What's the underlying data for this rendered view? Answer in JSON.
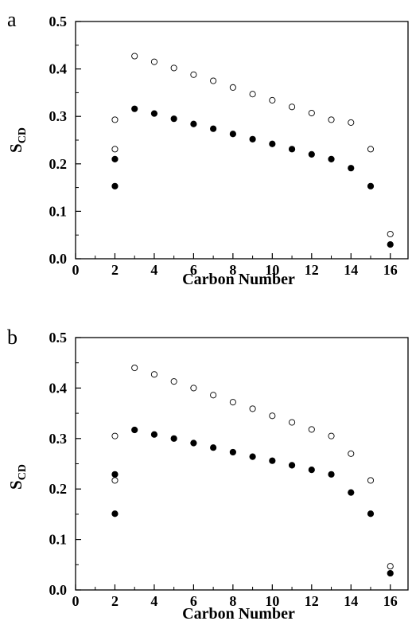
{
  "chart_data": [
    {
      "type": "scatter",
      "panel_label": "a",
      "xlabel": "Carbon Number",
      "ylabel": "S",
      "ylabel_subscript": "CD",
      "xlim": [
        0,
        16.9
      ],
      "ylim": [
        0,
        0.5
      ],
      "xticks": [
        "0",
        "2",
        "4",
        "6",
        "8",
        "10",
        "12",
        "14",
        "16"
      ],
      "yticks": [
        "0.0",
        "0.1",
        "0.2",
        "0.3",
        "0.4",
        "0.5"
      ],
      "grid": false,
      "series": [
        {
          "marker": "open-circle",
          "points": [
            {
              "x": 2,
              "y": 0.293
            },
            {
              "x": 2,
              "y": 0.231
            },
            {
              "x": 3,
              "y": 0.427
            },
            {
              "x": 4,
              "y": 0.415
            },
            {
              "x": 5,
              "y": 0.402
            },
            {
              "x": 6,
              "y": 0.388
            },
            {
              "x": 7,
              "y": 0.375
            },
            {
              "x": 8,
              "y": 0.361
            },
            {
              "x": 9,
              "y": 0.347
            },
            {
              "x": 10,
              "y": 0.334
            },
            {
              "x": 11,
              "y": 0.32
            },
            {
              "x": 12,
              "y": 0.307
            },
            {
              "x": 13,
              "y": 0.293
            },
            {
              "x": 14,
              "y": 0.287
            },
            {
              "x": 15,
              "y": 0.231
            },
            {
              "x": 16,
              "y": 0.052
            }
          ]
        },
        {
          "marker": "filled-circle",
          "points": [
            {
              "x": 2,
              "y": 0.21
            },
            {
              "x": 2,
              "y": 0.153
            },
            {
              "x": 3,
              "y": 0.316
            },
            {
              "x": 4,
              "y": 0.306
            },
            {
              "x": 5,
              "y": 0.295
            },
            {
              "x": 6,
              "y": 0.284
            },
            {
              "x": 7,
              "y": 0.274
            },
            {
              "x": 8,
              "y": 0.263
            },
            {
              "x": 9,
              "y": 0.252
            },
            {
              "x": 10,
              "y": 0.242
            },
            {
              "x": 11,
              "y": 0.231
            },
            {
              "x": 12,
              "y": 0.22
            },
            {
              "x": 13,
              "y": 0.21
            },
            {
              "x": 14,
              "y": 0.191
            },
            {
              "x": 15,
              "y": 0.153
            },
            {
              "x": 16,
              "y": 0.03
            }
          ]
        }
      ]
    },
    {
      "type": "scatter",
      "panel_label": "b",
      "xlabel": "Carbon Number",
      "ylabel": "S",
      "ylabel_subscript": "CD",
      "xlim": [
        0,
        16.9
      ],
      "ylim": [
        0,
        0.5
      ],
      "xticks": [
        "0",
        "2",
        "4",
        "6",
        "8",
        "10",
        "12",
        "14",
        "16"
      ],
      "yticks": [
        "0.0",
        "0.1",
        "0.2",
        "0.3",
        "0.4",
        "0.5"
      ],
      "grid": false,
      "series": [
        {
          "marker": "open-circle",
          "points": [
            {
              "x": 2,
              "y": 0.305
            },
            {
              "x": 2,
              "y": 0.217
            },
            {
              "x": 3,
              "y": 0.44
            },
            {
              "x": 4,
              "y": 0.427
            },
            {
              "x": 5,
              "y": 0.413
            },
            {
              "x": 6,
              "y": 0.4
            },
            {
              "x": 7,
              "y": 0.386
            },
            {
              "x": 8,
              "y": 0.372
            },
            {
              "x": 9,
              "y": 0.359
            },
            {
              "x": 10,
              "y": 0.345
            },
            {
              "x": 11,
              "y": 0.332
            },
            {
              "x": 12,
              "y": 0.318
            },
            {
              "x": 13,
              "y": 0.305
            },
            {
              "x": 14,
              "y": 0.27
            },
            {
              "x": 15,
              "y": 0.217
            },
            {
              "x": 16,
              "y": 0.047
            }
          ]
        },
        {
          "marker": "filled-circle",
          "points": [
            {
              "x": 2,
              "y": 0.229
            },
            {
              "x": 2,
              "y": 0.151
            },
            {
              "x": 3,
              "y": 0.317
            },
            {
              "x": 4,
              "y": 0.308
            },
            {
              "x": 5,
              "y": 0.3
            },
            {
              "x": 6,
              "y": 0.291
            },
            {
              "x": 7,
              "y": 0.282
            },
            {
              "x": 8,
              "y": 0.273
            },
            {
              "x": 9,
              "y": 0.264
            },
            {
              "x": 10,
              "y": 0.256
            },
            {
              "x": 11,
              "y": 0.247
            },
            {
              "x": 12,
              "y": 0.238
            },
            {
              "x": 13,
              "y": 0.229
            },
            {
              "x": 14,
              "y": 0.193
            },
            {
              "x": 15,
              "y": 0.151
            },
            {
              "x": 16,
              "y": 0.033
            }
          ]
        }
      ]
    }
  ]
}
